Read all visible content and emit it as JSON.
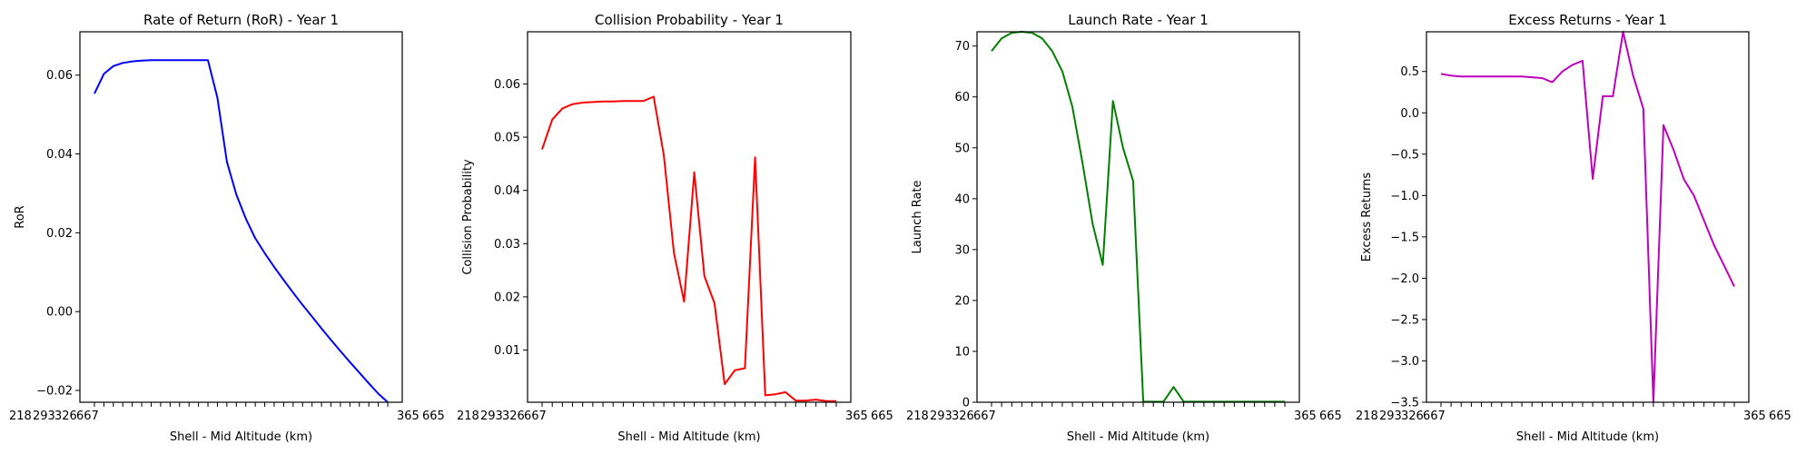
{
  "chart_data": [
    {
      "type": "line",
      "title": "Rate of Return (RoR) - Year 1",
      "xlabel": "Shell - Mid Altitude (km)",
      "ylabel": "RoR",
      "color": "#0000ff",
      "ylim": [
        -0.023,
        0.071
      ],
      "yticks": [
        -0.02,
        0.0,
        0.02,
        0.04,
        0.06
      ],
      "ytick_labels": [
        "−0.02",
        "0.00",
        "0.02",
        "0.04",
        "0.06"
      ],
      "xtick_labels": [
        "218",
        "293",
        "326",
        "667",
        "365",
        "665"
      ],
      "values": [
        0.0553,
        0.0603,
        0.0623,
        0.0631,
        0.0635,
        0.0637,
        0.0638,
        0.0638,
        0.0638,
        0.0638,
        0.0638,
        0.0638,
        0.0638,
        0.0543,
        0.038,
        0.0297,
        0.0236,
        0.0186,
        0.0148,
        0.0113,
        0.008,
        0.0048,
        0.0017,
        -0.0013,
        -0.0043,
        -0.0072,
        -0.01,
        -0.0128,
        -0.0155,
        -0.0182,
        -0.0208,
        -0.023
      ]
    },
    {
      "type": "line",
      "title": "Collision Probability - Year 1",
      "xlabel": "Shell - Mid Altitude (km)",
      "ylabel": "Collision Probability",
      "color": "#ff0000",
      "ylim": [
        0.0002,
        0.0698
      ],
      "yticks": [
        0.01,
        0.02,
        0.03,
        0.04,
        0.05,
        0.06
      ],
      "ytick_labels": [
        "0.01",
        "0.02",
        "0.03",
        "0.04",
        "0.05",
        "0.06"
      ],
      "xtick_labels": [
        "218",
        "293",
        "326",
        "667",
        "365",
        "665"
      ],
      "values": [
        0.0477,
        0.0533,
        0.0554,
        0.0562,
        0.0565,
        0.0566,
        0.0567,
        0.0567,
        0.0568,
        0.0568,
        0.0568,
        0.0576,
        0.0466,
        0.0283,
        0.0191,
        0.0434,
        0.0239,
        0.0188,
        0.0036,
        0.0062,
        0.0066,
        0.0462,
        0.0015,
        0.0017,
        0.0021,
        0.0005,
        0.0005,
        0.0007,
        0.0004,
        0.0004
      ]
    },
    {
      "type": "line",
      "title": "Launch Rate - Year 1",
      "xlabel": "Shell - Mid Altitude (km)",
      "ylabel": "Launch Rate",
      "color": "#008000",
      "ylim": [
        0,
        72.8
      ],
      "yticks": [
        0,
        10,
        20,
        30,
        40,
        50,
        60,
        70
      ],
      "ytick_labels": [
        "0",
        "10",
        "20",
        "30",
        "40",
        "50",
        "60",
        "70"
      ],
      "xtick_labels": [
        "218",
        "293",
        "326",
        "667",
        "365",
        "665"
      ],
      "values": [
        69.0,
        71.5,
        72.6,
        72.8,
        72.6,
        71.5,
        69.0,
        65.0,
        58.0,
        47.0,
        35.0,
        27.0,
        59.2,
        50.0,
        43.5,
        0.1,
        0.1,
        0.1,
        3.0,
        0.1,
        0.1,
        0.1,
        0.1,
        0.1,
        0.1,
        0.1,
        0.1,
        0.1,
        0.1,
        0.1
      ]
    },
    {
      "type": "line",
      "title": "Excess Returns - Year 1",
      "xlabel": "Shell - Mid Altitude (km)",
      "ylabel": "Excess Returns",
      "color": "#bf00bf",
      "ylim": [
        -3.5,
        0.98
      ],
      "yticks": [
        -3.5,
        -3.0,
        -2.5,
        -2.0,
        -1.5,
        -1.0,
        -0.5,
        0.0,
        0.5
      ],
      "ytick_labels": [
        "−3.5",
        "−3.0",
        "−2.5",
        "−2.0",
        "−1.5",
        "−1.0",
        "−0.5",
        "0.0",
        "0.5"
      ],
      "xtick_labels": [
        "218",
        "293",
        "326",
        "667",
        "365",
        "665"
      ],
      "values": [
        0.47,
        0.45,
        0.44,
        0.44,
        0.44,
        0.44,
        0.44,
        0.44,
        0.44,
        0.43,
        0.42,
        0.37,
        0.5,
        0.58,
        0.63,
        -0.8,
        0.2,
        0.2,
        0.98,
        0.45,
        0.05,
        -3.5,
        -0.15,
        -0.45,
        -0.8,
        -1.0,
        -1.3,
        -1.6,
        -1.85,
        -2.1
      ]
    }
  ]
}
